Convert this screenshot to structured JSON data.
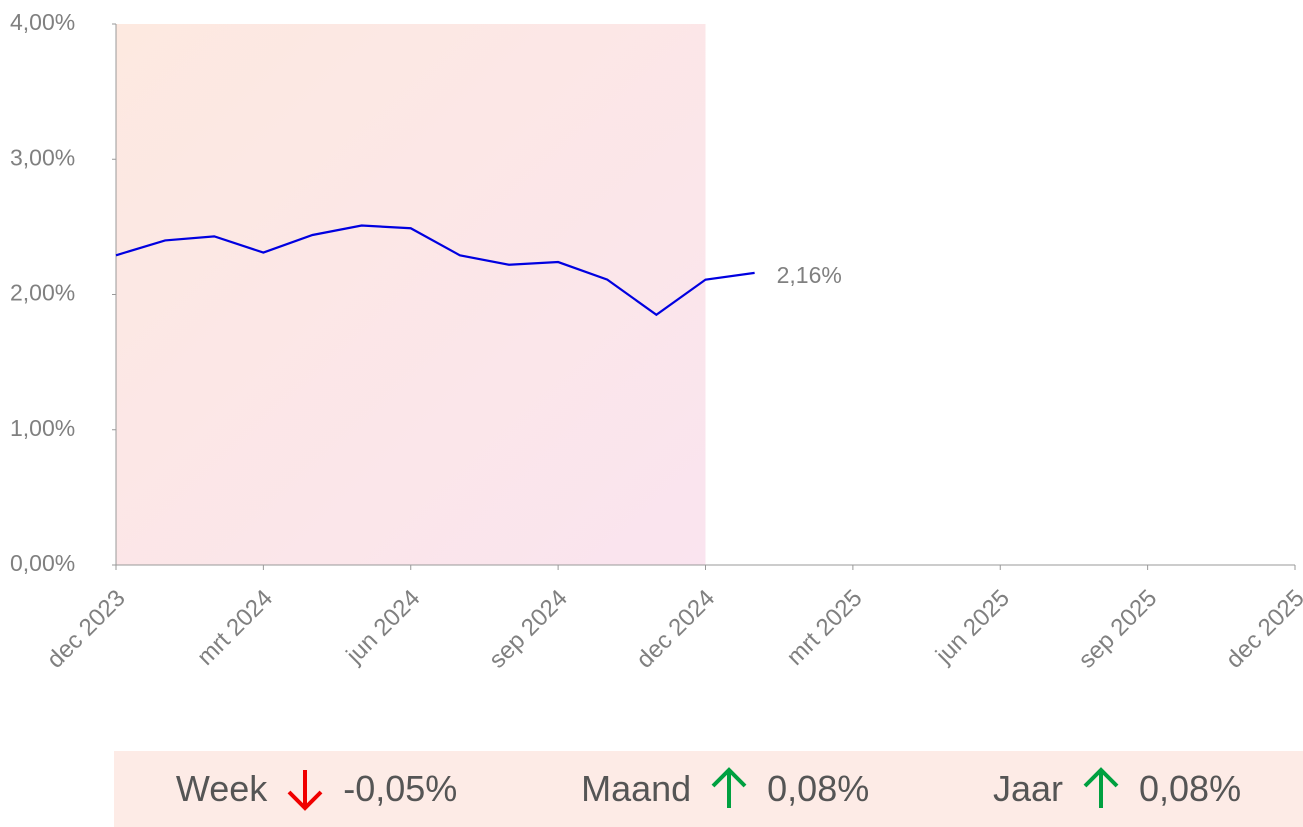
{
  "chart_data": {
    "type": "line",
    "x": [
      "2023-12",
      "2024-01",
      "2024-02",
      "2024-03",
      "2024-04",
      "2024-05",
      "2024-06",
      "2024-07",
      "2024-08",
      "2024-09",
      "2024-10",
      "2024-11",
      "2024-12",
      "2025-01"
    ],
    "series": [
      {
        "color": "#0000e0",
        "values": [
          2.29,
          2.4,
          2.43,
          2.31,
          2.44,
          2.51,
          2.49,
          2.29,
          2.22,
          2.24,
          2.11,
          1.85,
          2.11,
          2.16
        ]
      }
    ],
    "last_value_label": "2,16%",
    "highlight": [
      "2023-12",
      "2024-12"
    ],
    "xlim": [
      "2023-12",
      "2025-12"
    ],
    "xticks": [
      {
        "value": "2023-12",
        "label": "dec 2023"
      },
      {
        "value": "2024-03",
        "label": "mrt 2024"
      },
      {
        "value": "2024-06",
        "label": "jun 2024"
      },
      {
        "value": "2024-09",
        "label": "sep 2024"
      },
      {
        "value": "2024-12",
        "label": "dec 2024"
      },
      {
        "value": "2025-03",
        "label": "mrt 2025"
      },
      {
        "value": "2025-06",
        "label": "jun 2025"
      },
      {
        "value": "2025-09",
        "label": "sep 2025"
      },
      {
        "value": "2025-12",
        "label": "dec 2025"
      }
    ],
    "ylim": [
      0,
      4
    ],
    "yticks": [
      {
        "value": 0,
        "label": "0,00%"
      },
      {
        "value": 1,
        "label": "1,00%"
      },
      {
        "value": 2,
        "label": "2,00%"
      },
      {
        "value": 3,
        "label": "3,00%"
      },
      {
        "value": 4,
        "label": "4,00%"
      }
    ]
  },
  "summary": [
    {
      "label": "Week",
      "value": "-0,05%",
      "direction": "down"
    },
    {
      "label": "Maand",
      "value": "0,08%",
      "direction": "up"
    },
    {
      "label": "Jaar",
      "value": "0,08%",
      "direction": "up"
    }
  ]
}
